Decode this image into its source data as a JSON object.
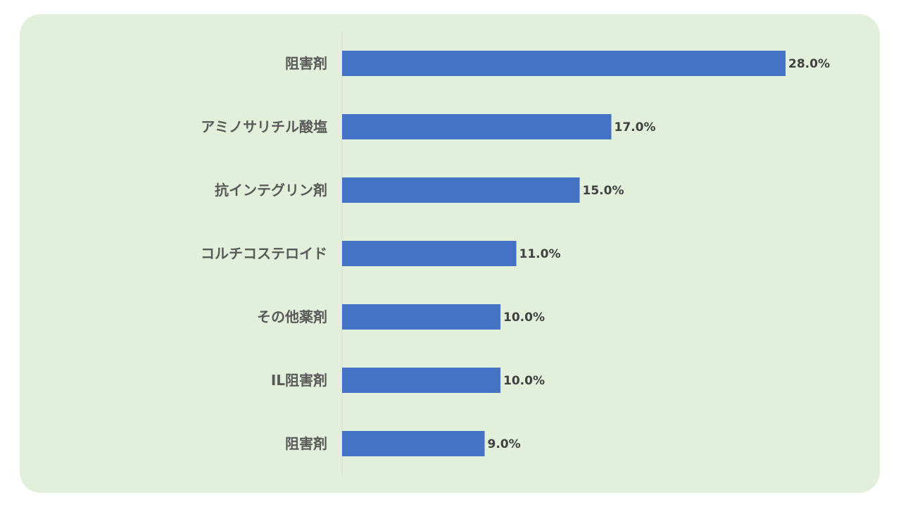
{
  "chart_data": {
    "type": "bar",
    "orientation": "horizontal",
    "title": "",
    "xlabel": "",
    "ylabel": "",
    "categories": [
      "阻害剤",
      "アミノサリチル酸塩",
      "抗インテグリン剤",
      "コルチコステロイド",
      "その他薬剤",
      "IL阻害剤",
      "阻害剤"
    ],
    "values": [
      28.0,
      17.0,
      15.0,
      11.0,
      10.0,
      10.0,
      9.0
    ],
    "value_labels": [
      "28.0%",
      "17.0%",
      "15.0%",
      "11.0%",
      "10.0%",
      "10.0%",
      "9.0%"
    ],
    "xlim": [
      0,
      35
    ],
    "grid": false,
    "legend": "none",
    "colors": {
      "bar": "#4472c4",
      "background": "#e2efda",
      "axis": "#d9d9d9"
    }
  }
}
